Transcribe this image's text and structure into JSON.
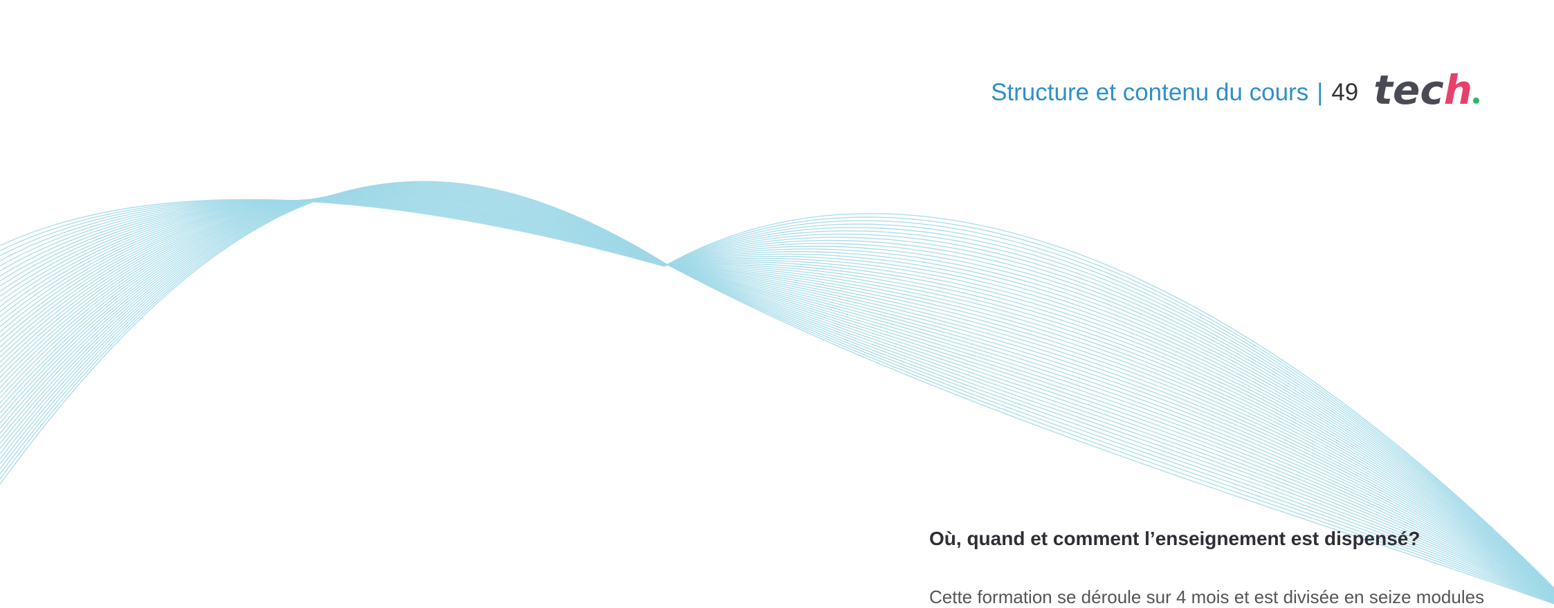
{
  "header": {
    "section_title": "Structure et contenu du cours",
    "separator": "|",
    "page_number": "49",
    "logo": {
      "text_main": "tec",
      "text_end": "h"
    }
  },
  "main": {
    "question": "Où, quand et comment l’enseignement est dispensé?",
    "paragraph_start": "Cette formation se déroule sur 4 mois et est divisée en seize modules"
  },
  "colors": {
    "accent": "#2f8fc9",
    "wave": "#9fd8e8",
    "logo_main": "#4a4a55",
    "logo_accent": "#e8406a",
    "logo_dot": "#29b765"
  }
}
